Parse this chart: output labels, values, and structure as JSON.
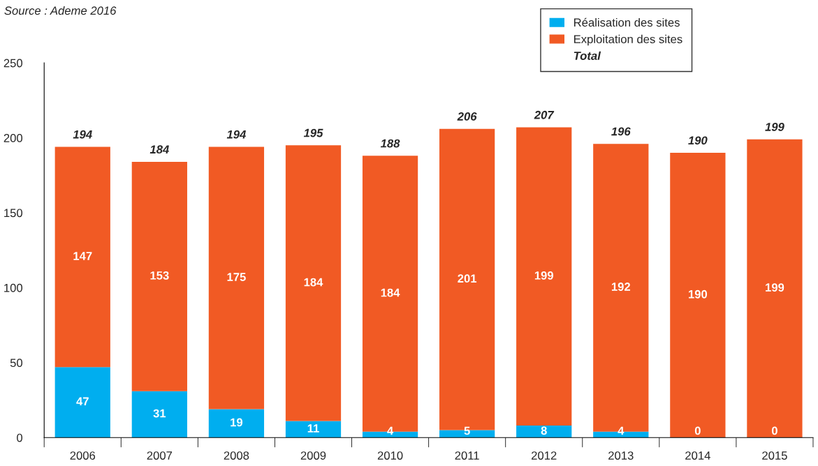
{
  "chart_data": {
    "type": "bar",
    "stacked": true,
    "categories": [
      "2006",
      "2007",
      "2008",
      "2009",
      "2010",
      "2011",
      "2012",
      "2013",
      "2014",
      "2015"
    ],
    "series": [
      {
        "name": "Réalisation des sites",
        "color": "#00aeef",
        "values": [
          47,
          31,
          19,
          11,
          4,
          5,
          8,
          4,
          0,
          0
        ]
      },
      {
        "name": "Exploitation des sites",
        "color": "#f15a24",
        "values": [
          147,
          153,
          175,
          184,
          184,
          201,
          199,
          192,
          190,
          199
        ]
      }
    ],
    "totals": [
      "194",
      "184",
      "194",
      "195",
      "188",
      "206",
      "207",
      "196",
      "190",
      "199"
    ],
    "data_labels": true,
    "ylim": [
      0,
      250
    ],
    "yticks": [
      0,
      50,
      100,
      150,
      200,
      250
    ],
    "grid": false,
    "legend": "top right",
    "annotations": [
      "Source : Ademe 2016",
      "Total"
    ]
  }
}
